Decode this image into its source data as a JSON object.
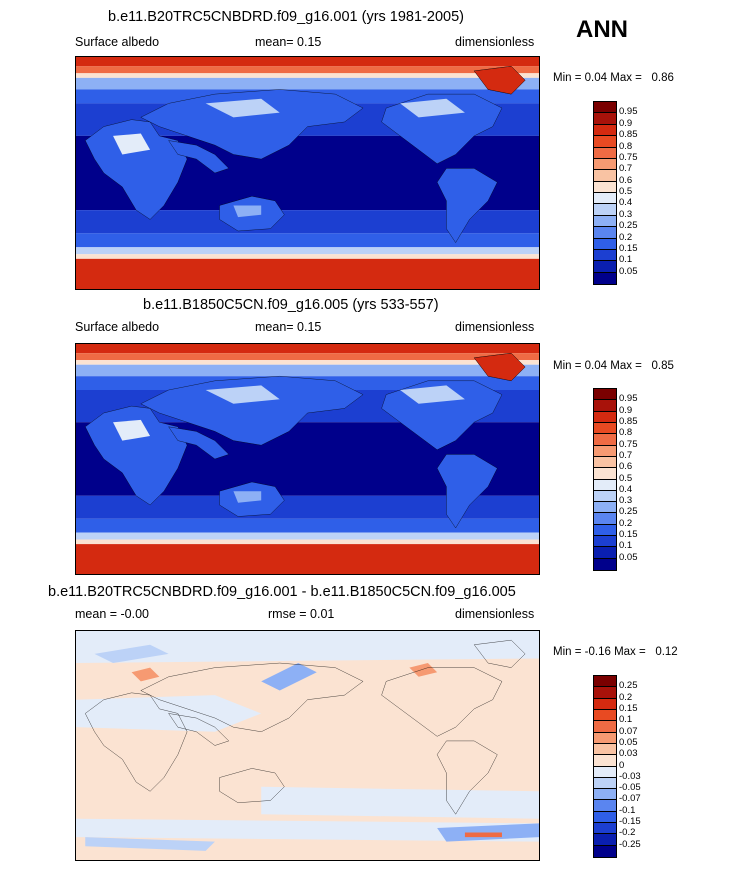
{
  "season": "ANN",
  "colors": {
    "abs_scale": [
      "#00008b",
      "#0a1fb0",
      "#1c3fd1",
      "#2f5fe8",
      "#5a85f0",
      "#8db0f5",
      "#bcd2f7",
      "#e3ecf9",
      "#fbe3d2",
      "#f9c3a3",
      "#f69a72",
      "#ef6b44",
      "#e84a22",
      "#d42a10",
      "#a8120a",
      "#7a0000"
    ],
    "diff_scale": [
      "#00008b",
      "#0a1fb0",
      "#1c3fd1",
      "#2f5fe8",
      "#5a85f0",
      "#8db0f5",
      "#bcd2f7",
      "#e3ecf9",
      "#fbe3d2",
      "#f9c3a3",
      "#f69a72",
      "#ef6b44",
      "#e84a22",
      "#d42a10",
      "#a8120a",
      "#7a0000"
    ]
  },
  "panels": [
    {
      "title": "b.e11.B20TRC5CNBDRD.f09_g16.001 (yrs 1981-2005)",
      "left": "Surface albedo",
      "center": "mean=  0.15",
      "right": "dimensionless",
      "min_label": "Min =",
      "min_value": "0.04",
      "max_label": "Max =",
      "max_value": "0.86",
      "levels": [
        "0.95",
        "0.9",
        "0.85",
        "0.8",
        "0.75",
        "0.7",
        "0.6",
        "0.5",
        "0.4",
        "0.3",
        "0.25",
        "0.2",
        "0.15",
        "0.1",
        "0.05"
      ]
    },
    {
      "title": "b.e11.B1850C5CN.f09_g16.005 (yrs 533-557)",
      "left": "Surface albedo",
      "center": "mean=  0.15",
      "right": "dimensionless",
      "min_label": "Min =",
      "min_value": "0.04",
      "max_label": "Max =",
      "max_value": "0.85",
      "levels": [
        "0.95",
        "0.9",
        "0.85",
        "0.8",
        "0.75",
        "0.7",
        "0.6",
        "0.5",
        "0.4",
        "0.3",
        "0.25",
        "0.2",
        "0.15",
        "0.1",
        "0.05"
      ]
    },
    {
      "title": "b.e11.B20TRC5CNBDRD.f09_g16.001 - b.e11.B1850C5CN.f09_g16.005",
      "left": "mean =  -0.00",
      "center": "rmse =  0.01",
      "right": "dimensionless",
      "min_label": "Min =",
      "min_value": "-0.16",
      "max_label": "Max =",
      "max_value": "0.12",
      "levels": [
        "0.25",
        "0.2",
        "0.15",
        "0.1",
        "0.07",
        "0.05",
        "0.03",
        "0",
        "-0.03",
        "-0.05",
        "-0.07",
        "-0.1",
        "-0.15",
        "-0.2",
        "-0.25"
      ]
    }
  ],
  "chart_data": [
    {
      "type": "heatmap",
      "title": "b.e11.B20TRC5CNBDRD.f09_g16.001 (yrs 1981-2005)",
      "variable": "Surface albedo",
      "units": "dimensionless",
      "mean": 0.15,
      "min": 0.04,
      "max": 0.86,
      "contour_levels": [
        0.05,
        0.1,
        0.15,
        0.2,
        0.25,
        0.3,
        0.4,
        0.5,
        0.6,
        0.7,
        0.75,
        0.8,
        0.85,
        0.9,
        0.95
      ]
    },
    {
      "type": "heatmap",
      "title": "b.e11.B1850C5CN.f09_g16.005 (yrs 533-557)",
      "variable": "Surface albedo",
      "units": "dimensionless",
      "mean": 0.15,
      "min": 0.04,
      "max": 0.85,
      "contour_levels": [
        0.05,
        0.1,
        0.15,
        0.2,
        0.25,
        0.3,
        0.4,
        0.5,
        0.6,
        0.7,
        0.75,
        0.8,
        0.85,
        0.9,
        0.95
      ]
    },
    {
      "type": "heatmap",
      "title": "b.e11.B20TRC5CNBDRD.f09_g16.001 - b.e11.B1850C5CN.f09_g16.005",
      "units": "dimensionless",
      "mean": -0.0,
      "rmse": 0.01,
      "min": -0.16,
      "max": 0.12,
      "contour_levels": [
        -0.25,
        -0.2,
        -0.15,
        -0.1,
        -0.07,
        -0.05,
        -0.03,
        0,
        0.03,
        0.05,
        0.07,
        0.1,
        0.15,
        0.2,
        0.25
      ]
    }
  ]
}
